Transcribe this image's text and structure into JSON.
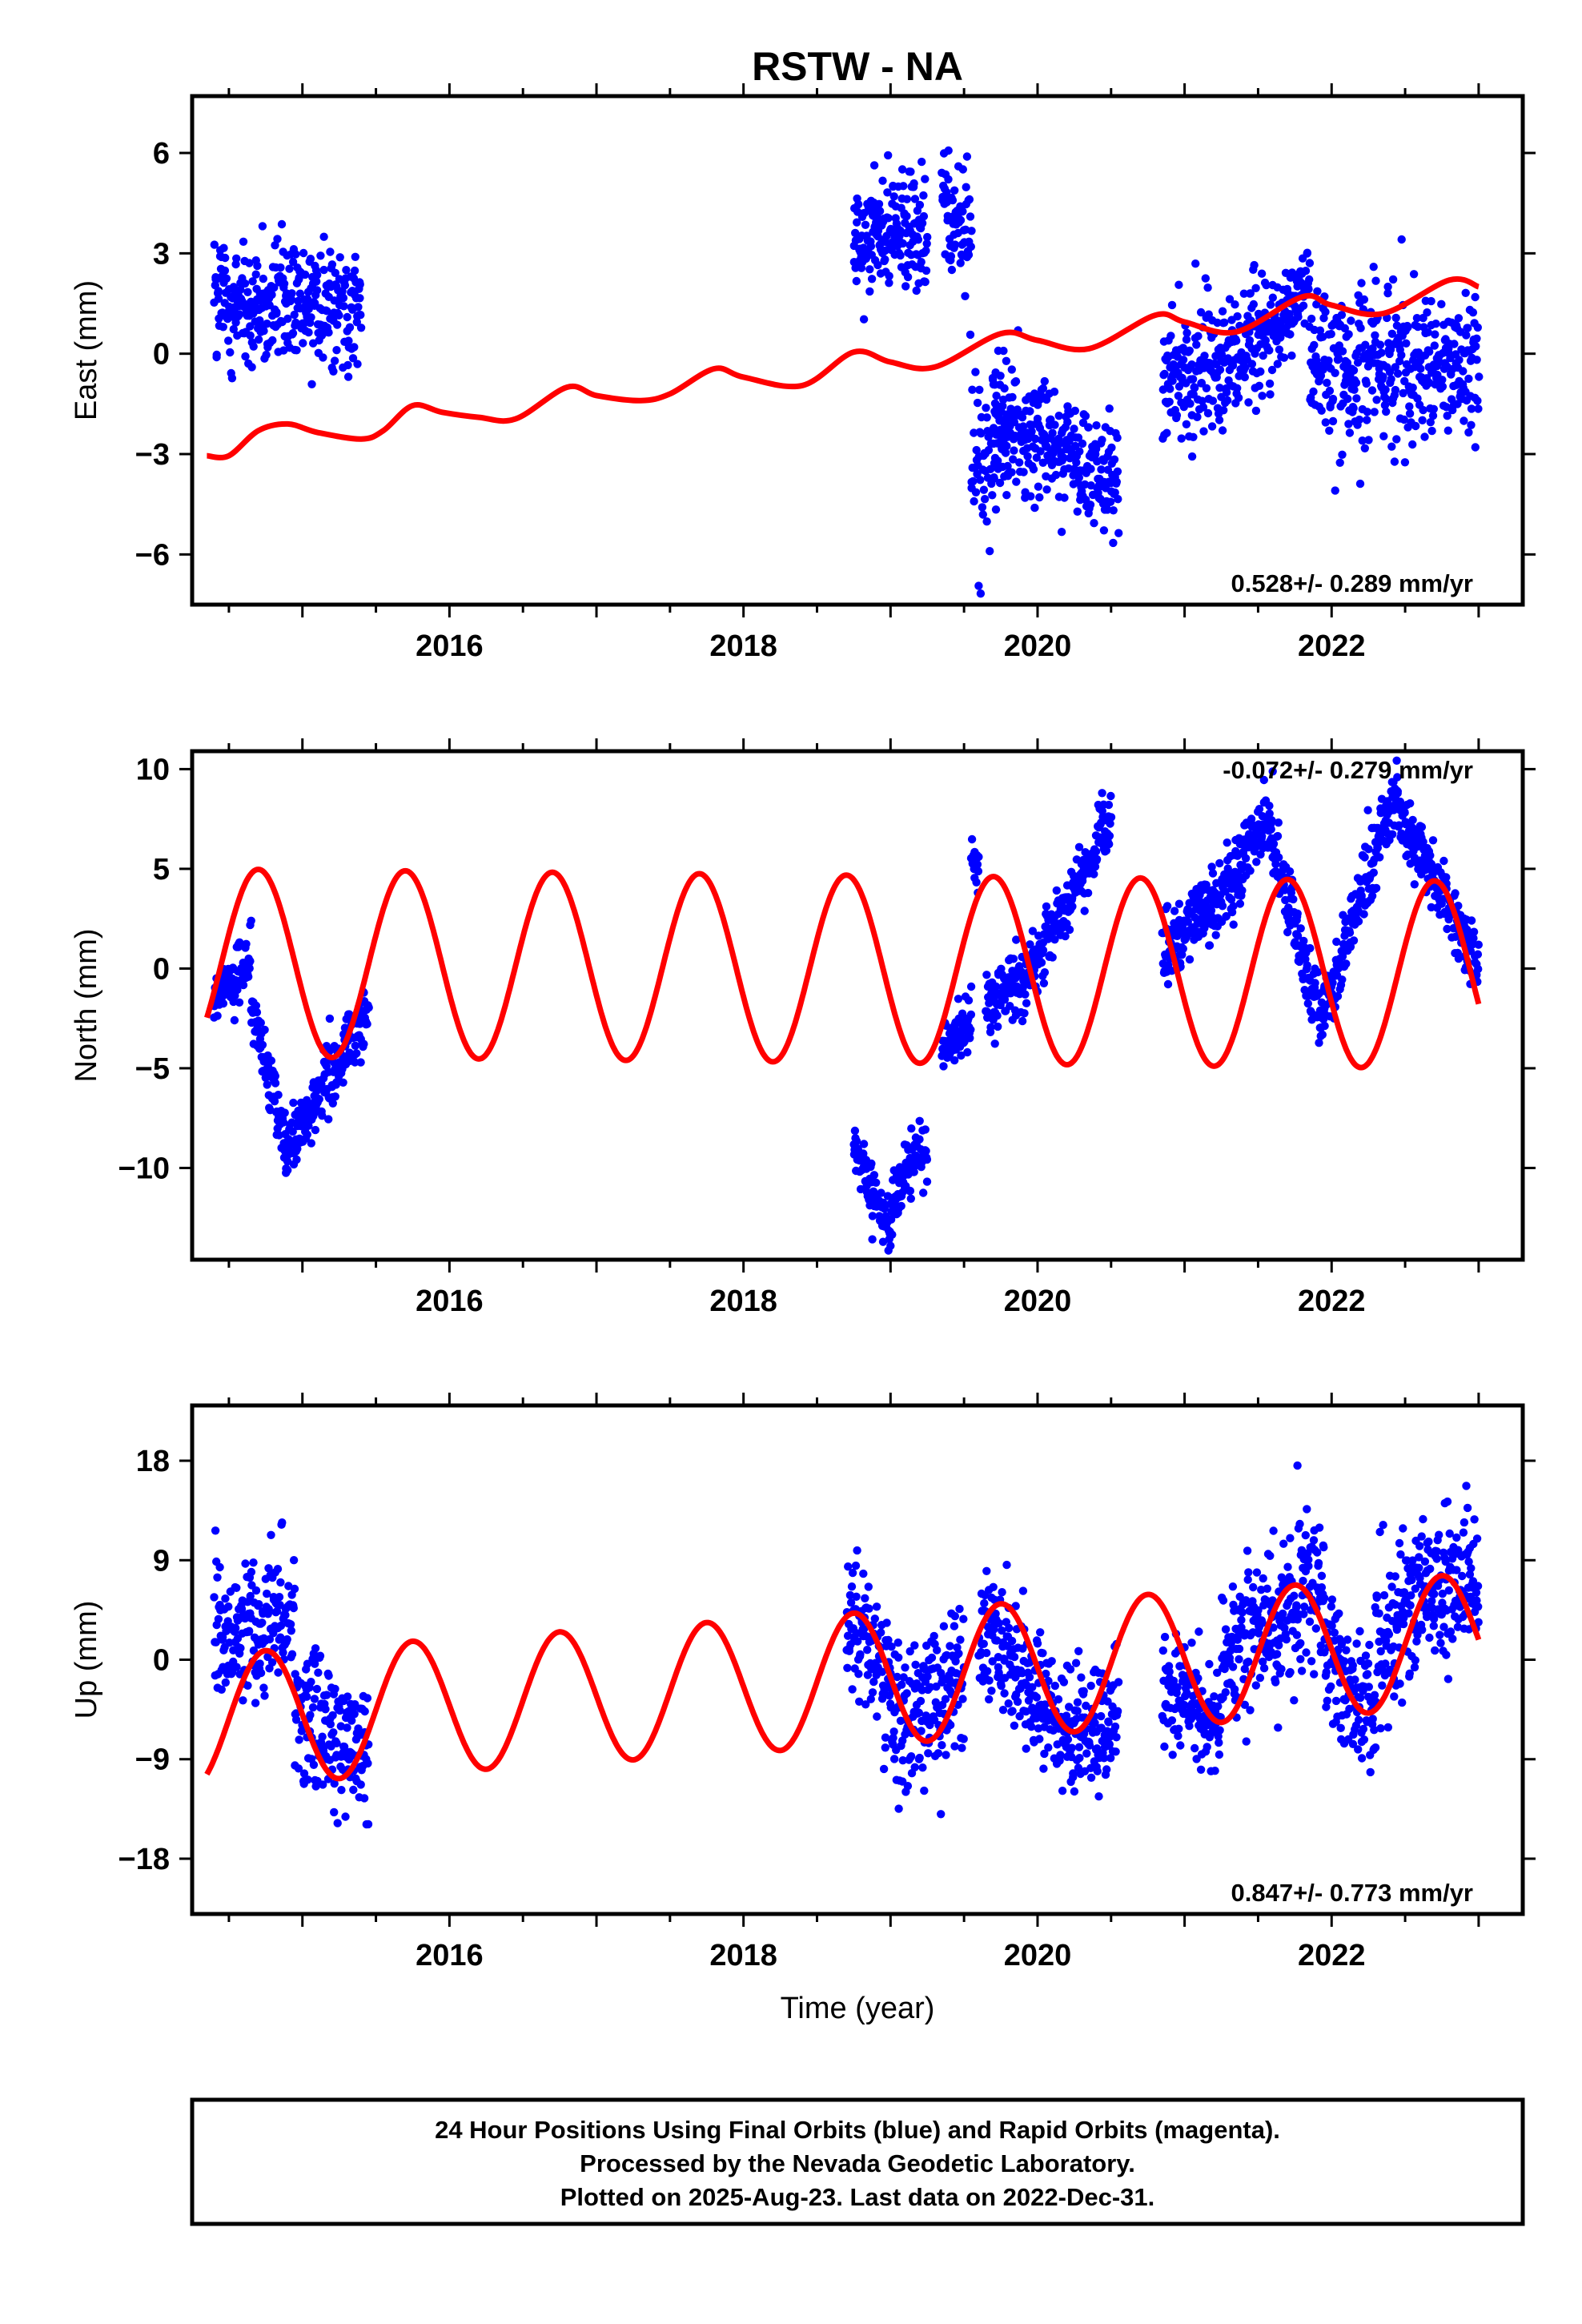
{
  "title": "RSTW - NA",
  "footer": {
    "line1": "24 Hour Positions Using Final Orbits (blue) and Rapid Orbits (magenta).",
    "line2": "Processed by the Nevada Geodetic Laboratory.",
    "line3": "Plotted on 2025-Aug-23. Last data on 2022-Dec-31."
  },
  "colors": {
    "data": "#0000ff",
    "model": "#ff0000",
    "frame": "#000000"
  },
  "chart_data": [
    {
      "type": "scatter",
      "ylabel": "East (mm)",
      "xlabel": "",
      "rate_label": "0.528+/- 0.289 mm/yr",
      "xlim": [
        2014.25,
        2023.3
      ],
      "ylim": [
        -7.5,
        7.7
      ],
      "xticks": [
        2016,
        2018,
        2020,
        2022
      ],
      "xtick_labels": [
        "2016",
        "2018",
        "2020",
        "2022"
      ],
      "yticks": [
        6,
        3,
        0,
        -3,
        -6
      ],
      "ytick_labels": [
        "6",
        "3",
        "0",
        "−3",
        "−6"
      ],
      "segments": [
        {
          "x": [
            2014.4,
            2015.4
          ],
          "y_start": 1.5,
          "y_end": 1.5,
          "spread": 1.1,
          "anom": []
        },
        {
          "x": [
            2018.75,
            2019.25
          ],
          "y_start": 3.5,
          "y_end": 3.7,
          "spread": 1.1,
          "anom": []
        },
        {
          "x": [
            2019.35,
            2019.55
          ],
          "y_start": 4.8,
          "y_end": 3.5,
          "spread": 1.3,
          "anom": []
        },
        {
          "x": [
            2019.55,
            2019.8
          ],
          "y_start": -3.5,
          "y_end": -2.5,
          "spread": 1.6,
          "anom": []
        },
        {
          "x": [
            2019.7,
            2020.55
          ],
          "y_start": -1.8,
          "y_end": -3.9,
          "spread": 1.2,
          "anom": []
        },
        {
          "x": [
            2020.85,
            2021.6
          ],
          "y_start": -0.8,
          "y_end": 0.5,
          "spread": 1.4,
          "anom": []
        },
        {
          "x": [
            2021.6,
            2021.85
          ],
          "y_start": 0.8,
          "y_end": 2.0,
          "spread": 0.9,
          "anom": []
        },
        {
          "x": [
            2021.85,
            2023.0
          ],
          "y_start": -0.5,
          "y_end": -0.2,
          "spread": 1.4,
          "anom": []
        }
      ],
      "model": {
        "points": [
          [
            2014.35,
            -3.05
          ],
          [
            2014.5,
            -3.05
          ],
          [
            2014.7,
            -2.3
          ],
          [
            2014.9,
            -2.1
          ],
          [
            2015.1,
            -2.35
          ],
          [
            2015.4,
            -2.55
          ],
          [
            2015.55,
            -2.3
          ],
          [
            2015.75,
            -1.55
          ],
          [
            2015.95,
            -1.75
          ],
          [
            2016.2,
            -1.9
          ],
          [
            2016.45,
            -1.95
          ],
          [
            2016.8,
            -1.0
          ],
          [
            2017.0,
            -1.25
          ],
          [
            2017.3,
            -1.4
          ],
          [
            2017.5,
            -1.2
          ],
          [
            2017.8,
            -0.45
          ],
          [
            2018.0,
            -0.7
          ],
          [
            2018.4,
            -0.95
          ],
          [
            2018.75,
            0.05
          ],
          [
            2019.0,
            -0.25
          ],
          [
            2019.3,
            -0.4
          ],
          [
            2019.75,
            0.6
          ],
          [
            2020.0,
            0.4
          ],
          [
            2020.35,
            0.15
          ],
          [
            2020.8,
            1.15
          ],
          [
            2021.0,
            0.95
          ],
          [
            2021.35,
            0.65
          ],
          [
            2021.8,
            1.7
          ],
          [
            2022.0,
            1.45
          ],
          [
            2022.35,
            1.2
          ],
          [
            2022.8,
            2.2
          ],
          [
            2023.0,
            2.0
          ]
        ]
      }
    },
    {
      "type": "scatter",
      "ylabel": "North (mm)",
      "xlabel": "",
      "rate_label": "-0.072+/- 0.279 mm/yr",
      "xlim": [
        2014.25,
        2023.3
      ],
      "ylim": [
        -14.6,
        10.9
      ],
      "xticks": [
        2016,
        2018,
        2020,
        2022
      ],
      "xtick_labels": [
        "2016",
        "2018",
        "2020",
        "2022"
      ],
      "yticks": [
        10,
        5,
        0,
        -5,
        -10
      ],
      "ytick_labels": [
        "10",
        "5",
        "0",
        "−5",
        "−10"
      ],
      "segments": [
        {
          "x": [
            2014.4,
            2014.65
          ],
          "y_start": -1.5,
          "y_end": 0.5,
          "spread": 1.0,
          "anom": []
        },
        {
          "x": [
            2014.65,
            2014.9
          ],
          "y_start": -2.0,
          "y_end": -9.0,
          "spread": 1.1,
          "anom": []
        },
        {
          "x": [
            2014.9,
            2015.45
          ],
          "y_start": -9.0,
          "y_end": -2.0,
          "spread": 1.1,
          "anom": []
        },
        {
          "x": [
            2018.75,
            2019.0
          ],
          "y_start": -9.0,
          "y_end": -13.0,
          "spread": 1.0,
          "anom": []
        },
        {
          "x": [
            2019.0,
            2019.25
          ],
          "y_start": -12.0,
          "y_end": -8.5,
          "spread": 1.0,
          "anom": []
        },
        {
          "x": [
            2019.35,
            2019.55
          ],
          "y_start": -4.0,
          "y_end": -2.5,
          "spread": 1.0,
          "anom": []
        },
        {
          "x": [
            2019.55,
            2019.6
          ],
          "y_start": 4.5,
          "y_end": 5.5,
          "spread": 1.0,
          "anom": []
        },
        {
          "x": [
            2019.65,
            2020.0
          ],
          "y_start": -1.5,
          "y_end": 0.0,
          "spread": 1.2,
          "anom": []
        },
        {
          "x": [
            2020.0,
            2020.5
          ],
          "y_start": 0.5,
          "y_end": 7.5,
          "spread": 1.0,
          "anom": []
        },
        {
          "x": [
            2020.85,
            2021.4
          ],
          "y_start": 0.5,
          "y_end": 5.0,
          "spread": 1.2,
          "anom": []
        },
        {
          "x": [
            2021.4,
            2021.6
          ],
          "y_start": 6.5,
          "y_end": 7.0,
          "spread": 1.1,
          "anom": []
        },
        {
          "x": [
            2021.6,
            2021.95
          ],
          "y_start": 6.0,
          "y_end": -3.0,
          "spread": 1.2,
          "anom": []
        },
        {
          "x": [
            2021.95,
            2022.45
          ],
          "y_start": -2.0,
          "y_end": 9.0,
          "spread": 1.2,
          "anom": []
        },
        {
          "x": [
            2022.45,
            2023.0
          ],
          "y_start": 8.0,
          "y_end": 0.0,
          "spread": 1.2,
          "anom": []
        }
      ],
      "model": {
        "mean": 0.0,
        "slope": -0.072,
        "t0": 2018.5,
        "amp": 4.7,
        "amp_slope": -0.0,
        "phase_ref": 2014.7,
        "points": []
      }
    },
    {
      "type": "scatter",
      "ylabel": "Up (mm)",
      "xlabel": "Time (year)",
      "rate_label": "0.847+/- 0.773 mm/yr",
      "xlim": [
        2014.25,
        2023.3
      ],
      "ylim": [
        -23.0,
        23.0
      ],
      "xticks": [
        2016,
        2018,
        2020,
        2022
      ],
      "xtick_labels": [
        "2016",
        "2018",
        "2020",
        "2022"
      ],
      "yticks": [
        18,
        9,
        0,
        -9,
        -18
      ],
      "ytick_labels": [
        "18",
        "9",
        "0",
        "−9",
        "−18"
      ],
      "segments": [
        {
          "x": [
            2014.4,
            2014.95
          ],
          "y_start": 1.5,
          "y_end": 5.0,
          "spread": 4.0,
          "anom": []
        },
        {
          "x": [
            2014.95,
            2015.45
          ],
          "y_start": -4.0,
          "y_end": -9.0,
          "spread": 4.0,
          "anom": []
        },
        {
          "x": [
            2018.7,
            2019.0
          ],
          "y_start": 4.0,
          "y_end": -2.0,
          "spread": 4.5,
          "anom": []
        },
        {
          "x": [
            2019.0,
            2019.5
          ],
          "y_start": -6.0,
          "y_end": -2.0,
          "spread": 4.5,
          "anom": []
        },
        {
          "x": [
            2019.6,
            2020.2
          ],
          "y_start": 3.0,
          "y_end": -6.0,
          "spread": 4.0,
          "anom": []
        },
        {
          "x": [
            2020.2,
            2020.55
          ],
          "y_start": -7.0,
          "y_end": -4.0,
          "spread": 4.0,
          "anom": []
        },
        {
          "x": [
            2020.85,
            2021.25
          ],
          "y_start": -2.0,
          "y_end": -6.0,
          "spread": 3.5,
          "anom": []
        },
        {
          "x": [
            2021.25,
            2021.95
          ],
          "y_start": 0.0,
          "y_end": 7.0,
          "spread": 4.5,
          "anom": []
        },
        {
          "x": [
            2021.95,
            2022.3
          ],
          "y_start": 1.0,
          "y_end": -5.0,
          "spread": 4.0,
          "anom": []
        },
        {
          "x": [
            2022.3,
            2023.0
          ],
          "y_start": 2.0,
          "y_end": 8.0,
          "spread": 4.5,
          "anom": []
        }
      ],
      "model": {
        "mean": -2.0,
        "slope": 0.847,
        "t0": 2018.5,
        "amp": 6.0,
        "amp_slope": 0.0,
        "phase_ref": 2014.75,
        "points": []
      }
    }
  ]
}
